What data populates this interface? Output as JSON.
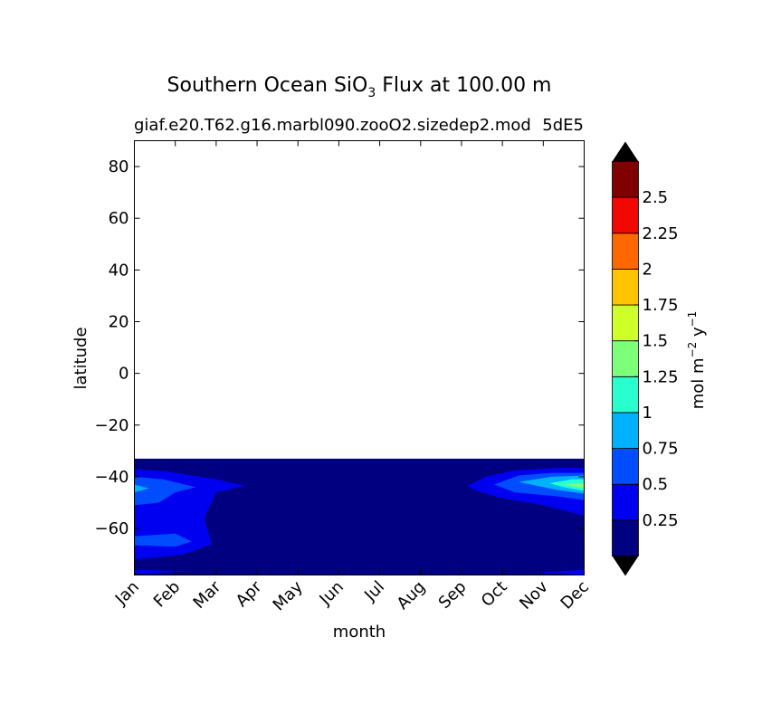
{
  "chart_data": {
    "type": "heatmap",
    "title": {
      "main": "Southern Ocean SiO",
      "sub": "3",
      "rest": " Flux at 100.00 m"
    },
    "subtitle_left": "giaf.e20.T62.g16.marbl090.zooO2.sizedep2.mod",
    "subtitle_right": "5dE5",
    "xlabel": "month",
    "ylabel": "latitude",
    "x_categories": [
      "Jan",
      "Feb",
      "Mar",
      "Apr",
      "May",
      "Jun",
      "Jul",
      "Aug",
      "Sep",
      "Oct",
      "Nov",
      "Dec"
    ],
    "xlim": [
      0,
      11
    ],
    "ylim": [
      -78,
      90
    ],
    "yticks": [
      80,
      60,
      40,
      20,
      0,
      -20,
      -40,
      -60
    ],
    "ytick_labels": [
      "80",
      "60",
      "40",
      "20",
      "0",
      "−20",
      "−40",
      "−60"
    ],
    "data_lat_range": [
      -78,
      -33
    ],
    "colorbar": {
      "label_main": "mol m",
      "label_exp1": "−2",
      "label_mid": " y",
      "label_exp2": "−1",
      "levels": [
        0,
        0.25,
        0.5,
        0.75,
        1,
        1.25,
        1.5,
        1.75,
        2,
        2.25,
        2.5,
        2.75
      ],
      "tick_values": [
        0.25,
        0.5,
        0.75,
        1,
        1.25,
        1.5,
        1.75,
        2,
        2.25,
        2.5
      ],
      "tick_labels": [
        "0.25",
        "0.5",
        "0.75",
        "1",
        "1.25",
        "1.5",
        "1.75",
        "2",
        "2.25",
        "2.5"
      ],
      "colors": [
        "#000080",
        "#0000f1",
        "#004dff",
        "#00b1ff",
        "#29ffce",
        "#7dff7a",
        "#ceff29",
        "#ffc400",
        "#ff6800",
        "#f10800",
        "#800000"
      ],
      "extend_colors": {
        "under": "#000000",
        "over": "#000000"
      }
    },
    "regions": [
      {
        "name": "Jan-Feb band",
        "level": 1,
        "points": [
          [
            0,
            -37
          ],
          [
            0.8,
            -38
          ],
          [
            2,
            -41
          ],
          [
            2.7,
            -43.5
          ],
          [
            2,
            -46
          ],
          [
            1.7,
            -56
          ],
          [
            1.9,
            -66
          ],
          [
            1.2,
            -70
          ],
          [
            0,
            -72
          ]
        ]
      },
      {
        "name": "Jan-Feb band",
        "level": 2,
        "points": [
          [
            0,
            -40
          ],
          [
            0.7,
            -41
          ],
          [
            1.5,
            -44
          ],
          [
            1,
            -46
          ],
          [
            0.6,
            -50
          ],
          [
            0,
            -51
          ]
        ]
      },
      {
        "name": "Jan-Feb band",
        "level": 2,
        "points": [
          [
            0,
            -63
          ],
          [
            1,
            -62
          ],
          [
            1.4,
            -65
          ],
          [
            1,
            -67
          ],
          [
            0,
            -66.5
          ]
        ]
      },
      {
        "name": "Jan peak",
        "level": 3,
        "points": [
          [
            0,
            -43
          ],
          [
            0.35,
            -44.5
          ],
          [
            0,
            -46
          ]
        ]
      },
      {
        "name": "Sep-Dec band",
        "level": 1,
        "points": [
          [
            8.15,
            -43.5
          ],
          [
            8.6,
            -40
          ],
          [
            9.3,
            -37.5
          ],
          [
            10.5,
            -36.5
          ],
          [
            11,
            -36.5
          ],
          [
            11,
            -55
          ],
          [
            10,
            -51
          ],
          [
            8.9,
            -48
          ],
          [
            8.3,
            -45
          ]
        ]
      },
      {
        "name": "Sep-Dec band",
        "level": 2,
        "points": [
          [
            8.8,
            -43
          ],
          [
            9.4,
            -39.5
          ],
          [
            10.2,
            -38.5
          ],
          [
            11,
            -38.5
          ],
          [
            11,
            -49
          ],
          [
            10.3,
            -47.5
          ],
          [
            9.3,
            -46
          ]
        ]
      },
      {
        "name": "Sep-Dec band",
        "level": 3,
        "points": [
          [
            9.4,
            -42
          ],
          [
            10.2,
            -40
          ],
          [
            11,
            -39.5
          ],
          [
            11,
            -46.5
          ],
          [
            10.3,
            -45
          ]
        ]
      },
      {
        "name": "Dec peak",
        "level": 4,
        "points": [
          [
            10.15,
            -42.5
          ],
          [
            10.7,
            -41
          ],
          [
            11,
            -41
          ],
          [
            11,
            -45.5
          ],
          [
            10.5,
            -44
          ]
        ]
      },
      {
        "name": "Dec peak core",
        "level": 5,
        "points": [
          [
            10.5,
            -43
          ],
          [
            11,
            -42.5
          ],
          [
            11,
            -44.5
          ]
        ]
      },
      {
        "name": "coastal strip",
        "level": 1,
        "points": [
          [
            0,
            -76
          ],
          [
            1.4,
            -76.5
          ],
          [
            0,
            -77.5
          ]
        ]
      },
      {
        "name": "coastal strip",
        "level": 1,
        "points": [
          [
            9.8,
            -77
          ],
          [
            11,
            -76
          ],
          [
            11,
            -78
          ]
        ]
      }
    ]
  }
}
